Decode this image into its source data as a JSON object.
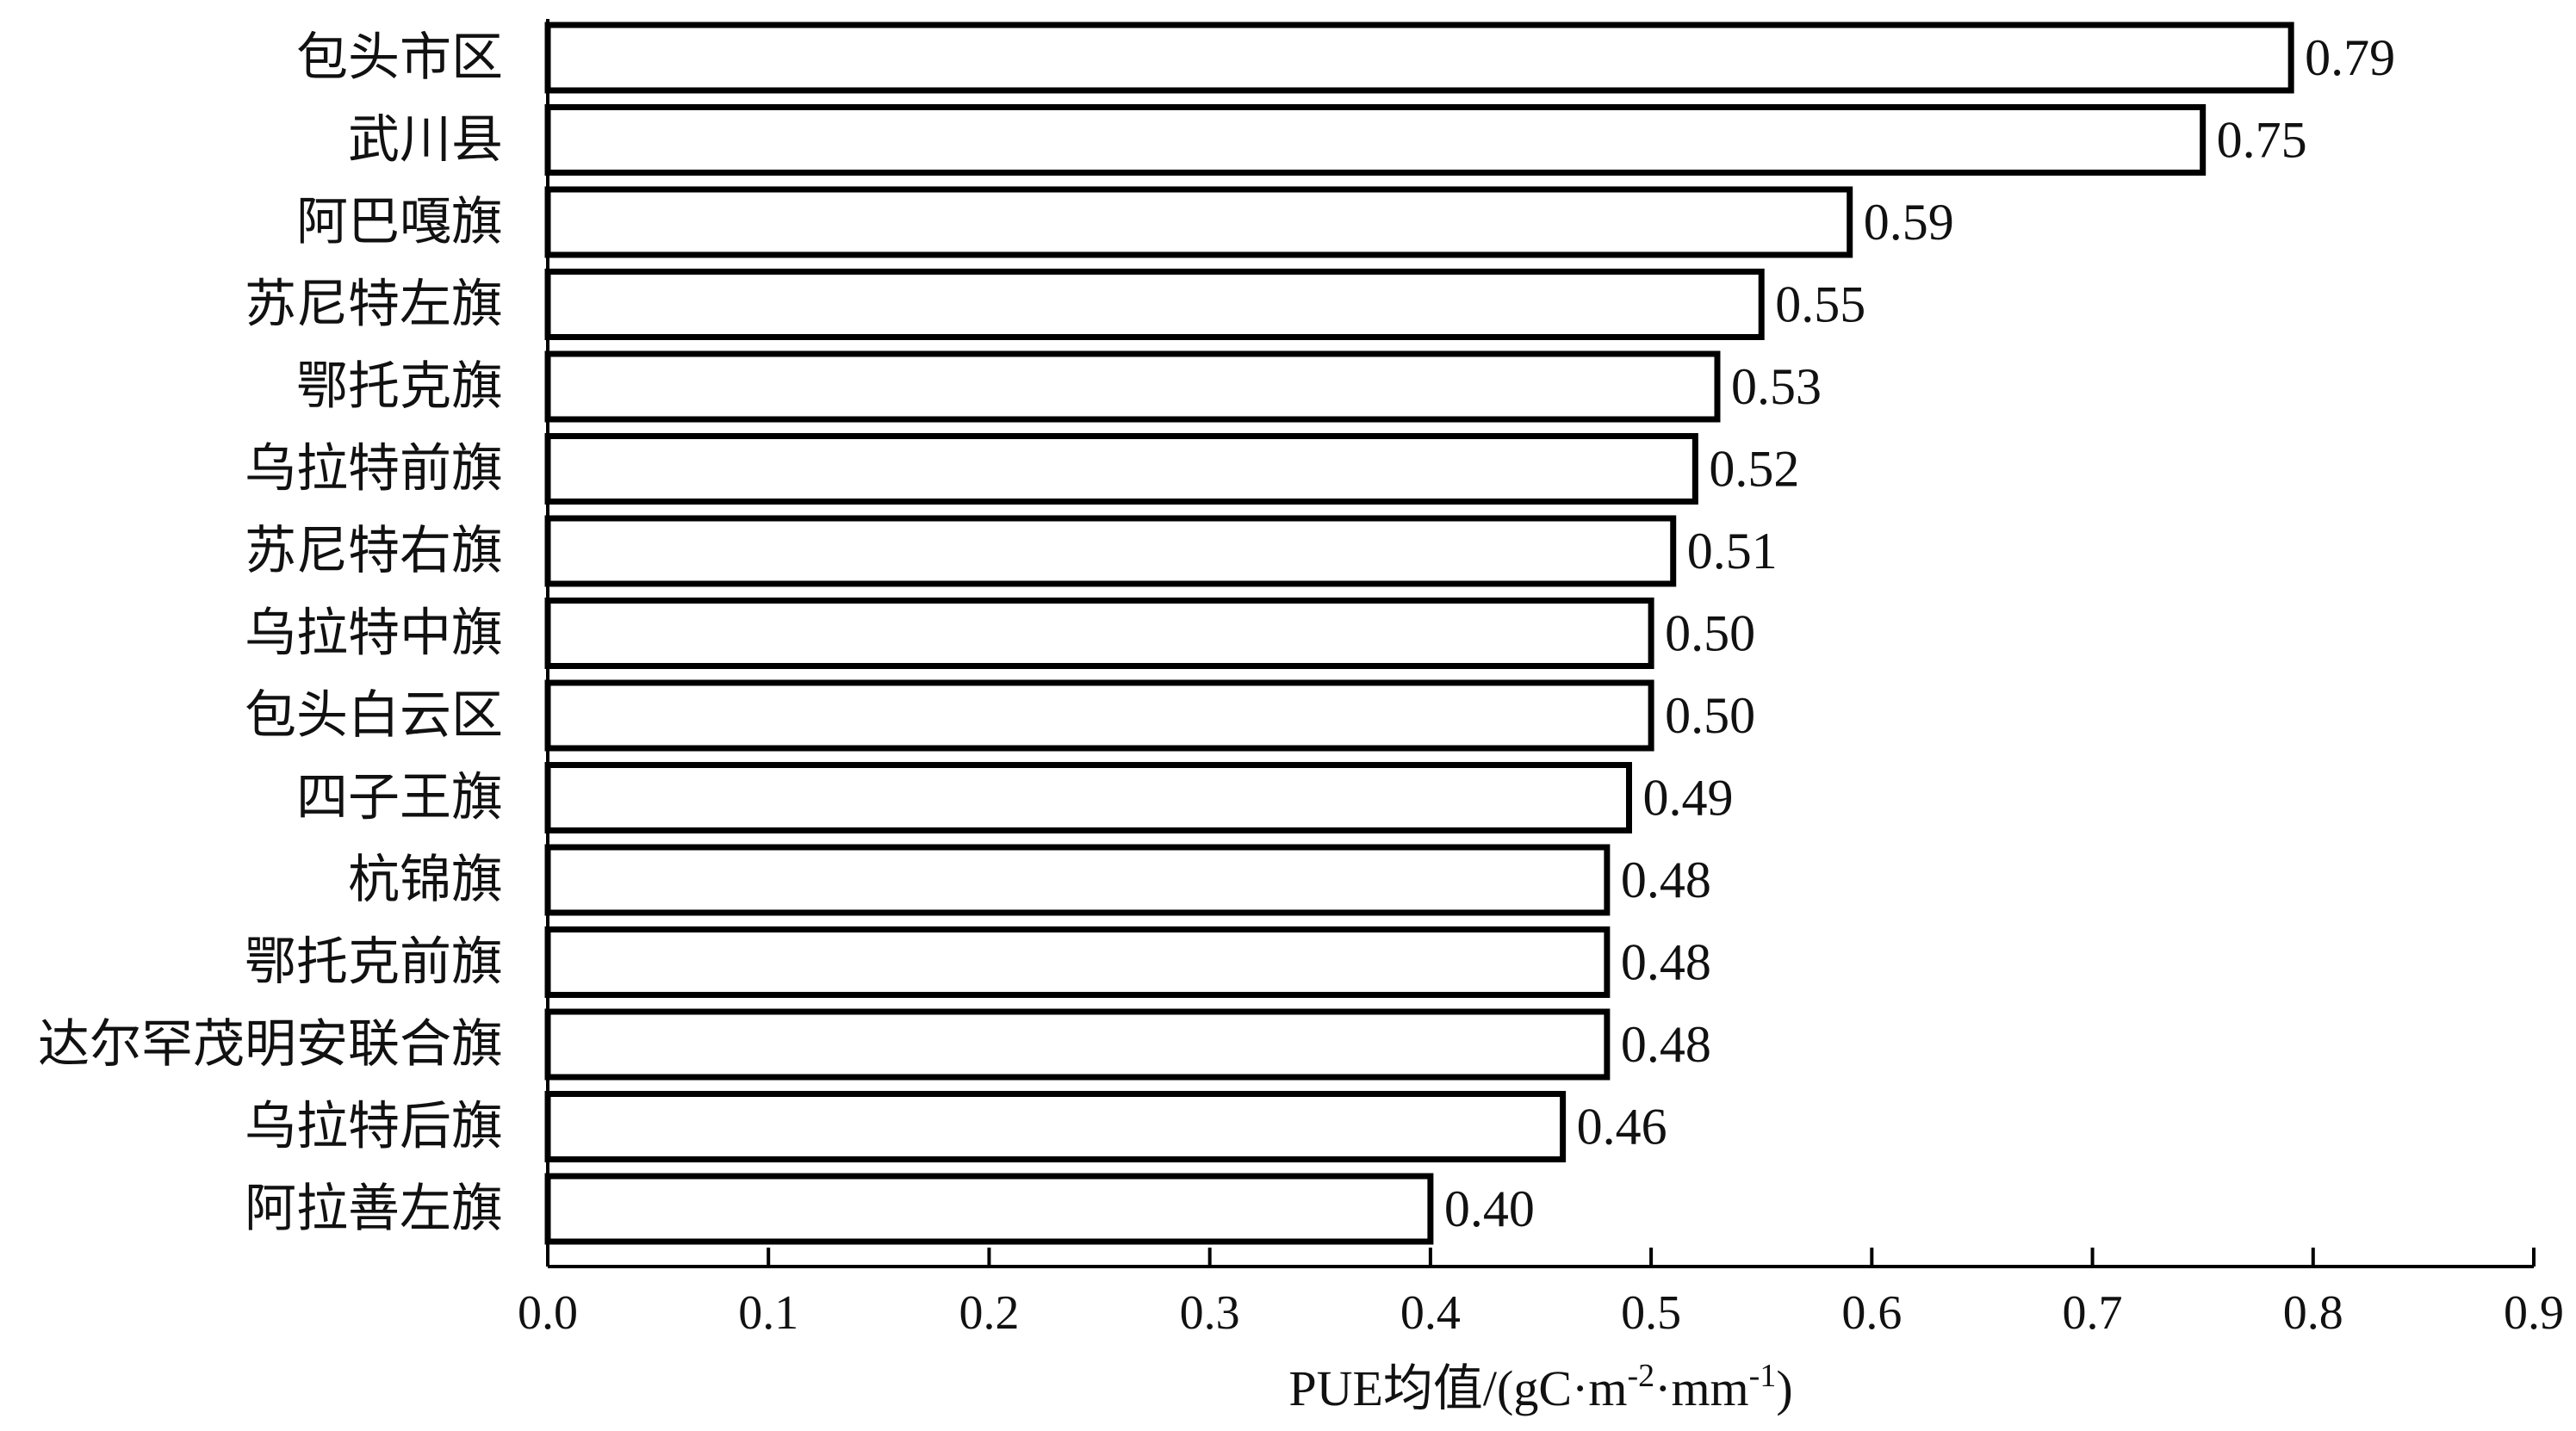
{
  "chart_data": {
    "type": "bar",
    "orientation": "horizontal",
    "categories": [
      "包头市区",
      "武川县",
      "阿巴嘎旗",
      "苏尼特左旗",
      "鄂托克旗",
      "乌拉特前旗",
      "苏尼特右旗",
      "乌拉特中旗",
      "包头白云区",
      "四子王旗",
      "杭锦旗",
      "鄂托克前旗",
      "达尔罕茂明安联合旗",
      "乌拉特后旗",
      "阿拉善左旗"
    ],
    "values": [
      0.79,
      0.75,
      0.59,
      0.55,
      0.53,
      0.52,
      0.51,
      0.5,
      0.5,
      0.49,
      0.48,
      0.48,
      0.48,
      0.46,
      0.4
    ],
    "value_labels": [
      "0.79",
      "0.75",
      "0.59",
      "0.55",
      "0.53",
      "0.52",
      "0.51",
      "0.50",
      "0.50",
      "0.49",
      "0.48",
      "0.48",
      "0.48",
      "0.46",
      "0.40"
    ],
    "xlim": [
      0,
      0.9
    ],
    "xticks": [
      0,
      0.1,
      0.2,
      0.3,
      0.4,
      0.5,
      0.6,
      0.7,
      0.8,
      0.9
    ],
    "xtick_labels": [
      "0.0",
      "0.1",
      "0.2",
      "0.3",
      "0.4",
      "0.5",
      "0.6",
      "0.7",
      "0.8",
      "0.9"
    ],
    "xlabel": {
      "prefix": "PUE均值/(gC·m",
      "sup1": "-2",
      "mid": "·mm",
      "sup2": "-1",
      "suffix": ")"
    },
    "ylabel": "",
    "title": "",
    "grid": false,
    "legend": "none",
    "bar_fill": "#ffffff",
    "bar_stroke": "#000000"
  }
}
